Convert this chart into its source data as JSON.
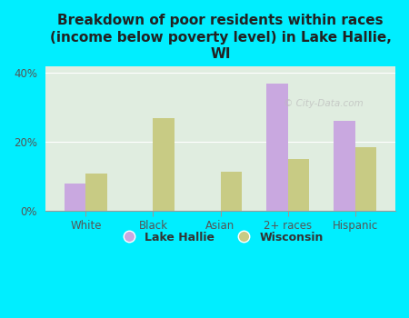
{
  "title": "Breakdown of poor residents within races\n(income below poverty level) in Lake Hallie,\nWI",
  "categories": [
    "White",
    "Black",
    "Asian",
    "2+ races",
    "Hispanic"
  ],
  "lake_hallie": [
    8.0,
    0.0,
    0.0,
    37.0,
    26.0
  ],
  "wisconsin": [
    11.0,
    27.0,
    11.5,
    15.0,
    18.5
  ],
  "lake_hallie_color": "#c9a8e0",
  "wisconsin_color": "#c8cb84",
  "background_outer": "#00eeff",
  "background_inner": "#e0ede0",
  "ylim": [
    0,
    42
  ],
  "yticks": [
    0,
    20,
    40
  ],
  "ytick_labels": [
    "0%",
    "20%",
    "40%"
  ],
  "bar_width": 0.32,
  "legend_lake_hallie": "Lake Hallie",
  "legend_wisconsin": "Wisconsin",
  "grid_color": "#ffffff",
  "title_fontsize": 11,
  "tick_fontsize": 8.5,
  "legend_fontsize": 9
}
